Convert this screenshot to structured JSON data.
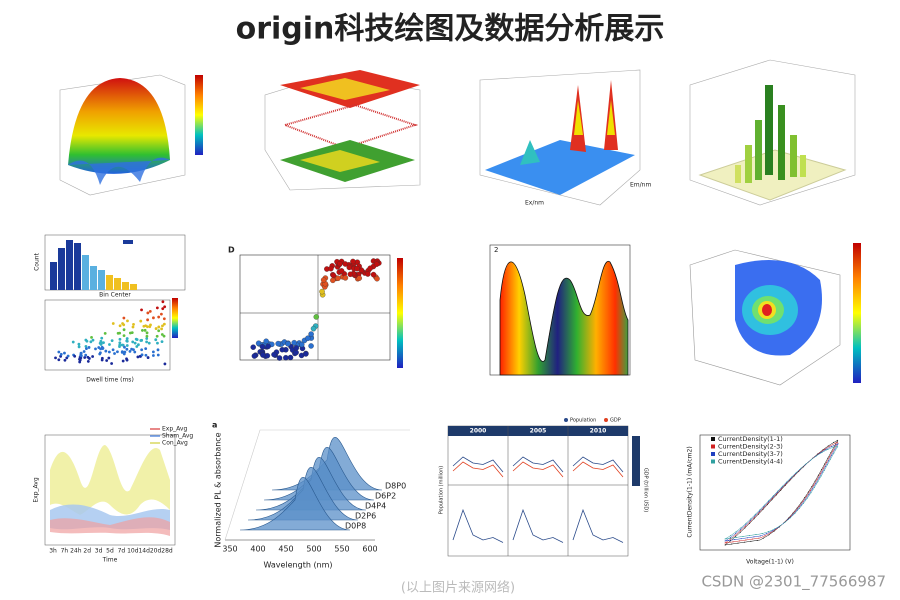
{
  "header": {
    "title": "origin科技绘图及数据分析展示"
  },
  "panels": {
    "surface_fluorescence": {
      "x_label": "Ex/nm",
      "y_label": "Em/nm"
    },
    "histogram_scatter": {
      "x_label": "Bin Center",
      "y_label": "Count",
      "scatter_x_label": "Dwell time (ms)"
    },
    "quadrant_scatter": {
      "tag": "D"
    },
    "rainbow_curve": {
      "tag": "2"
    },
    "band_lines": {
      "legend": [
        "Exp_Avg",
        "Sham_Avg",
        "Con_Avg"
      ],
      "y_label": "Exp_Avg",
      "x_label": "Time",
      "x_ticks": [
        "3h",
        "7h",
        "24h",
        "2d",
        "3d",
        "5d",
        "7d",
        "10d",
        "14d",
        "20d",
        "28d"
      ]
    },
    "ridgeline": {
      "tag": "a",
      "y_label": "Normalized PL & absorbance",
      "x_label": "Wavelength (nm)",
      "x_ticks": [
        "350",
        "400",
        "450",
        "500",
        "550",
        "600"
      ],
      "series": [
        "D8P0",
        "D6P2",
        "D4P4",
        "D2P6",
        "D0P8"
      ]
    },
    "small_multiples": {
      "legend": [
        "Population",
        "GDP"
      ],
      "years": [
        "2000",
        "2005",
        "2010"
      ],
      "y_label": "Population (million)",
      "y2_label": "GDP (trillion USD)"
    },
    "hysteresis": {
      "legend": [
        "CurrentDensity(1-1)",
        "CurrentDensity(2-3)",
        "CurrentDensity(3-7)",
        "CurrentDensity(4-4)"
      ],
      "x_label": "Voltage(1-1) (V)",
      "y_label": "CurrentDensity(1-1) (mA/cm2)"
    }
  },
  "caption": "(以上图片来源网络)",
  "watermark": "CSDN @2301_77566987"
}
